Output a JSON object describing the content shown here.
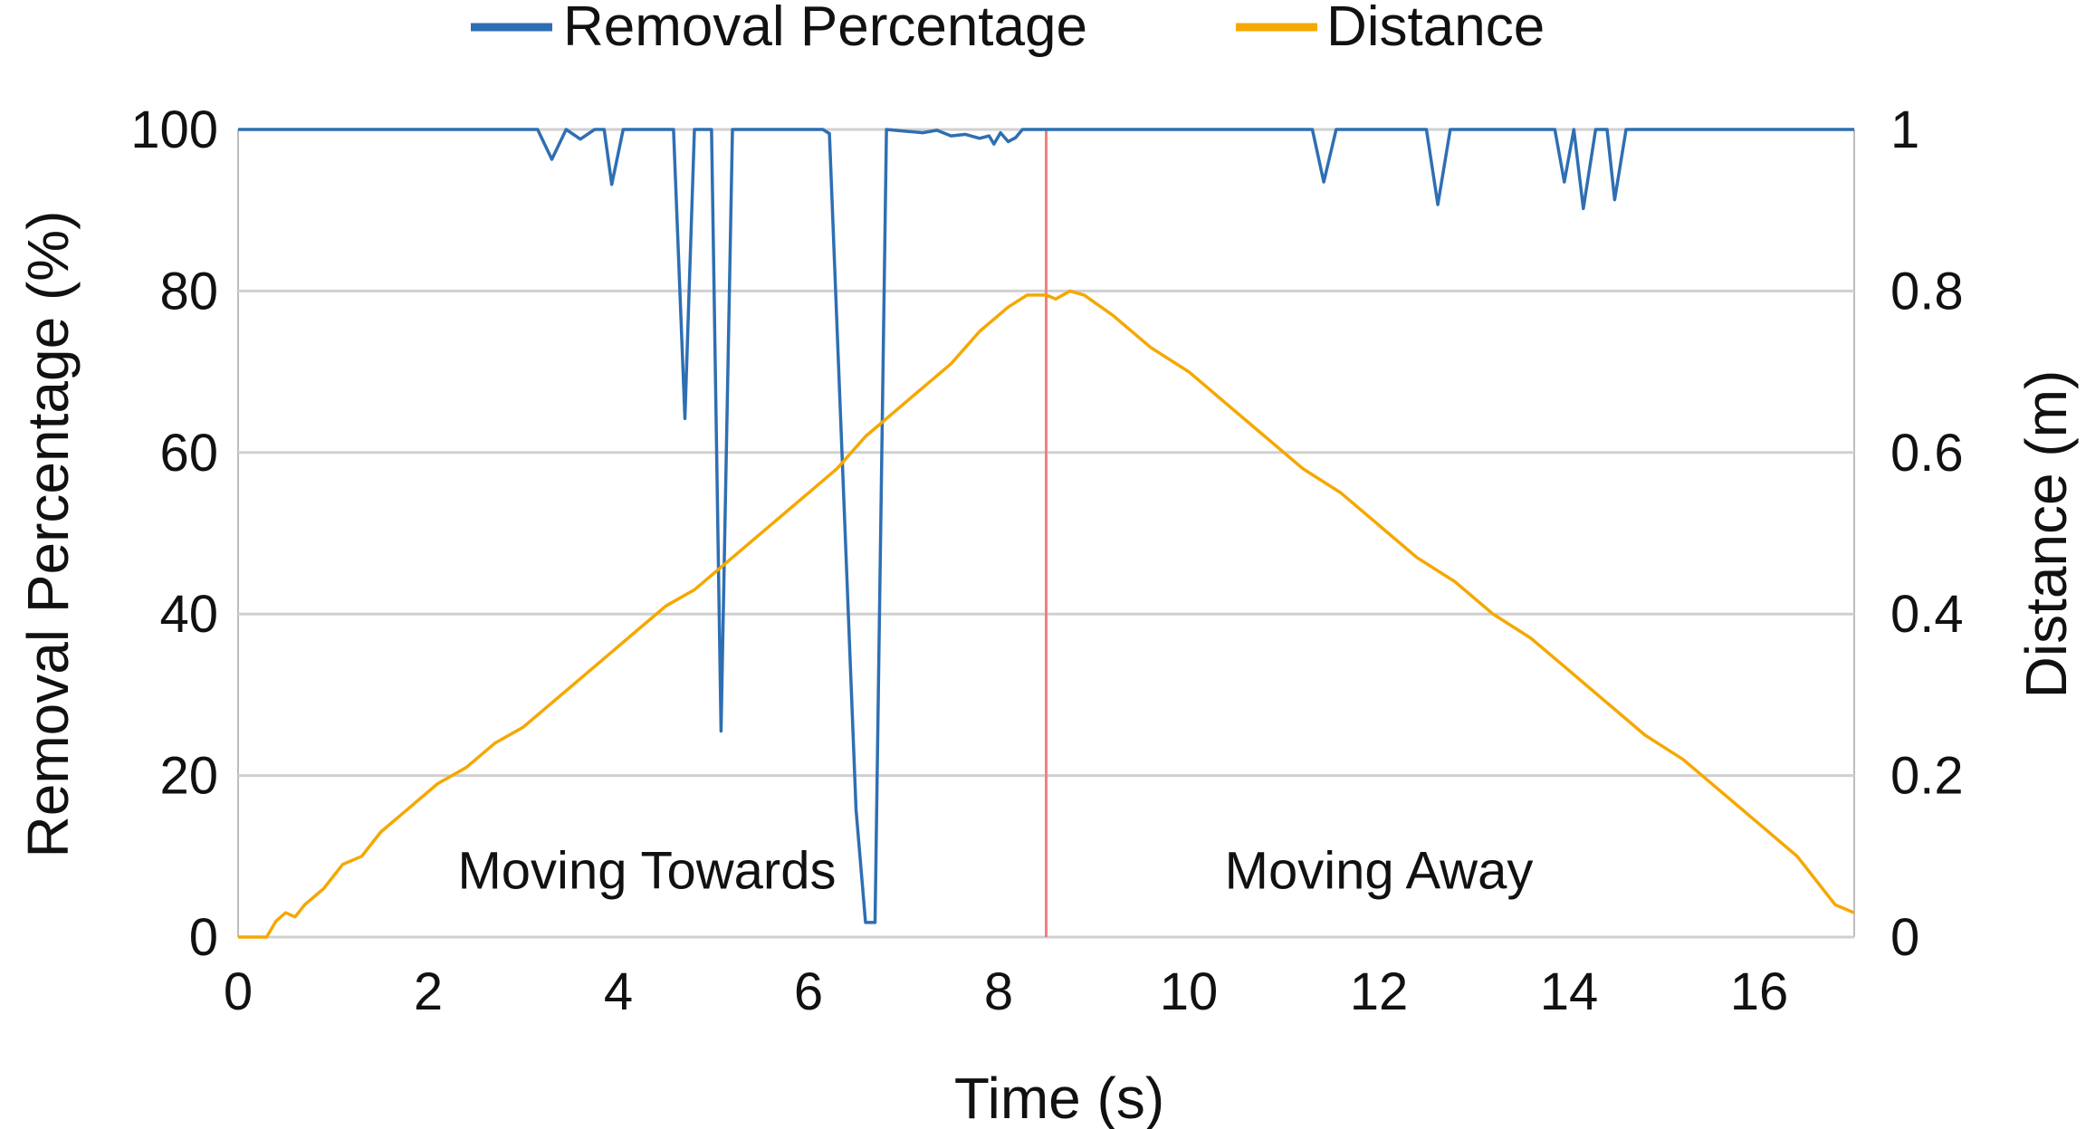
{
  "chart_data": {
    "type": "line",
    "xlabel": "Time (s)",
    "ylabel_left": "Removal Percentage (%)",
    "ylabel_right": "Distance (m)",
    "xlim": [
      0,
      17
    ],
    "ylim_left": [
      0,
      100
    ],
    "ylim_right": [
      0,
      1
    ],
    "x_ticks": [
      "0",
      "2",
      "4",
      "6",
      "8",
      "10",
      "12",
      "14",
      "16"
    ],
    "y_ticks_left": [
      "0",
      "20",
      "40",
      "60",
      "80",
      "100"
    ],
    "y_ticks_right": [
      "0",
      "0.2",
      "0.4",
      "0.6",
      "0.8",
      "1"
    ],
    "grid": true,
    "legend_position": "top-center",
    "legend": [
      {
        "label": "Removal Percentage",
        "color": "#2e6fb3"
      },
      {
        "label": "Distance",
        "color": "#f5a800"
      }
    ],
    "annotations": [
      {
        "text": "Moving Towards",
        "x": 4.3,
        "y": 6
      },
      {
        "text": "Moving Away",
        "x": 12.0,
        "y": 6
      }
    ],
    "marker_line": {
      "x": 8.5,
      "color": "#f08080"
    },
    "series": [
      {
        "name": "Removal Percentage",
        "axis": "left",
        "color": "#2e6fb3",
        "points": [
          [
            0,
            100
          ],
          [
            3.15,
            100
          ],
          [
            3.3,
            96.3
          ],
          [
            3.45,
            100
          ],
          [
            3.6,
            98.8
          ],
          [
            3.75,
            100
          ],
          [
            3.85,
            100
          ],
          [
            3.93,
            93.2
          ],
          [
            4.05,
            100
          ],
          [
            4.58,
            100
          ],
          [
            4.7,
            64.2
          ],
          [
            4.8,
            100
          ],
          [
            4.98,
            100
          ],
          [
            5.08,
            25.5
          ],
          [
            5.2,
            100
          ],
          [
            5.28,
            100
          ],
          [
            6.15,
            100
          ],
          [
            6.22,
            99.5
          ],
          [
            6.5,
            15.8
          ],
          [
            6.6,
            1.8
          ],
          [
            6.7,
            1.8
          ],
          [
            6.82,
            100
          ],
          [
            7.0,
            99.8
          ],
          [
            7.2,
            99.6
          ],
          [
            7.35,
            99.9
          ],
          [
            7.5,
            99.2
          ],
          [
            7.65,
            99.4
          ],
          [
            7.8,
            98.9
          ],
          [
            7.9,
            99.2
          ],
          [
            7.95,
            98.2
          ],
          [
            8.02,
            99.6
          ],
          [
            8.1,
            98.5
          ],
          [
            8.18,
            99.0
          ],
          [
            8.25,
            100
          ],
          [
            11.3,
            100
          ],
          [
            11.42,
            93.5
          ],
          [
            11.55,
            100
          ],
          [
            12.5,
            100
          ],
          [
            12.62,
            90.7
          ],
          [
            12.75,
            100
          ],
          [
            13.85,
            100
          ],
          [
            13.95,
            93.5
          ],
          [
            14.05,
            100
          ],
          [
            14.15,
            90.2
          ],
          [
            14.28,
            100
          ],
          [
            14.4,
            100
          ],
          [
            14.48,
            91.3
          ],
          [
            14.6,
            100
          ],
          [
            17.0,
            100
          ]
        ]
      },
      {
        "name": "Distance",
        "axis": "right",
        "color": "#f5a800",
        "points": [
          [
            0,
            0
          ],
          [
            0.3,
            0
          ],
          [
            0.4,
            0.02
          ],
          [
            0.5,
            0.03
          ],
          [
            0.6,
            0.025
          ],
          [
            0.7,
            0.04
          ],
          [
            0.9,
            0.06
          ],
          [
            1.1,
            0.09
          ],
          [
            1.3,
            0.1
          ],
          [
            1.5,
            0.13
          ],
          [
            1.8,
            0.16
          ],
          [
            2.1,
            0.19
          ],
          [
            2.4,
            0.21
          ],
          [
            2.7,
            0.24
          ],
          [
            3.0,
            0.26
          ],
          [
            3.3,
            0.29
          ],
          [
            3.6,
            0.32
          ],
          [
            3.9,
            0.35
          ],
          [
            4.2,
            0.38
          ],
          [
            4.5,
            0.41
          ],
          [
            4.8,
            0.43
          ],
          [
            5.1,
            0.46
          ],
          [
            5.4,
            0.49
          ],
          [
            5.7,
            0.52
          ],
          [
            6.0,
            0.55
          ],
          [
            6.3,
            0.58
          ],
          [
            6.6,
            0.62
          ],
          [
            6.9,
            0.65
          ],
          [
            7.2,
            0.68
          ],
          [
            7.5,
            0.71
          ],
          [
            7.8,
            0.75
          ],
          [
            8.1,
            0.78
          ],
          [
            8.3,
            0.795
          ],
          [
            8.5,
            0.795
          ],
          [
            8.6,
            0.79
          ],
          [
            8.75,
            0.8
          ],
          [
            8.9,
            0.795
          ],
          [
            9.2,
            0.77
          ],
          [
            9.6,
            0.73
          ],
          [
            10.0,
            0.7
          ],
          [
            10.4,
            0.66
          ],
          [
            10.8,
            0.62
          ],
          [
            11.2,
            0.58
          ],
          [
            11.6,
            0.55
          ],
          [
            12.0,
            0.51
          ],
          [
            12.4,
            0.47
          ],
          [
            12.8,
            0.44
          ],
          [
            13.2,
            0.4
          ],
          [
            13.6,
            0.37
          ],
          [
            14.0,
            0.33
          ],
          [
            14.4,
            0.29
          ],
          [
            14.8,
            0.25
          ],
          [
            15.2,
            0.22
          ],
          [
            15.6,
            0.18
          ],
          [
            16.0,
            0.14
          ],
          [
            16.4,
            0.1
          ],
          [
            16.6,
            0.07
          ],
          [
            16.8,
            0.04
          ],
          [
            17.0,
            0.03
          ]
        ]
      }
    ]
  }
}
